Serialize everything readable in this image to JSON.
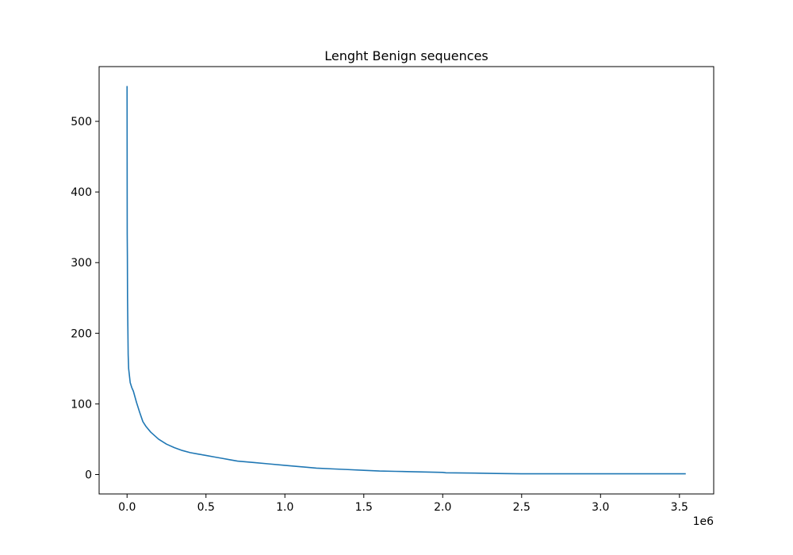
{
  "chart_data": {
    "type": "line",
    "title": "Lenght Benign sequences",
    "xlabel": "",
    "ylabel": "",
    "x_offset_label": "1e6",
    "xlim": [
      -0.177,
      3.717
    ],
    "ylim": [
      -27.5,
      577.5
    ],
    "grid": false,
    "line_color": "#1f77b4",
    "x_ticks": [
      {
        "value": 0.0,
        "label": "0.0"
      },
      {
        "value": 0.5,
        "label": "0.5"
      },
      {
        "value": 1.0,
        "label": "1.0"
      },
      {
        "value": 1.5,
        "label": "1.5"
      },
      {
        "value": 2.0,
        "label": "2.0"
      },
      {
        "value": 2.5,
        "label": "2.5"
      },
      {
        "value": 3.0,
        "label": "3.0"
      },
      {
        "value": 3.5,
        "label": "3.5"
      }
    ],
    "y_ticks": [
      {
        "value": 0,
        "label": "0"
      },
      {
        "value": 100,
        "label": "100"
      },
      {
        "value": 200,
        "label": "200"
      },
      {
        "value": 300,
        "label": "300"
      },
      {
        "value": 400,
        "label": "400"
      },
      {
        "value": 500,
        "label": "500"
      }
    ],
    "series": [
      {
        "x": [
          0,
          0.0005,
          0.001,
          0.002,
          0.003,
          0.005,
          0.007,
          0.01,
          0.015,
          0.02,
          0.03,
          0.04,
          0.05,
          0.06,
          0.08,
          0.1,
          0.12,
          0.15,
          0.2,
          0.25,
          0.3,
          0.35,
          0.4,
          0.45,
          0.5,
          0.55,
          0.6,
          0.65,
          0.7,
          0.8,
          0.9,
          1.0,
          1.1,
          1.2,
          1.3,
          1.4,
          1.5,
          1.6,
          1.7,
          1.8,
          2.0,
          2.02,
          2.2,
          2.34,
          2.5,
          3.0,
          3.54
        ],
        "y": [
          550,
          450,
          340,
          310,
          250,
          210,
          170,
          150,
          140,
          130,
          123,
          118,
          110,
          102,
          88,
          75,
          68,
          60,
          50,
          43,
          38,
          34,
          31,
          29,
          27,
          25,
          23,
          21,
          19,
          17,
          15,
          13,
          11,
          9,
          8,
          7,
          6,
          5,
          4.5,
          4,
          3,
          2.5,
          2,
          1.5,
          1,
          1,
          1
        ]
      }
    ]
  }
}
